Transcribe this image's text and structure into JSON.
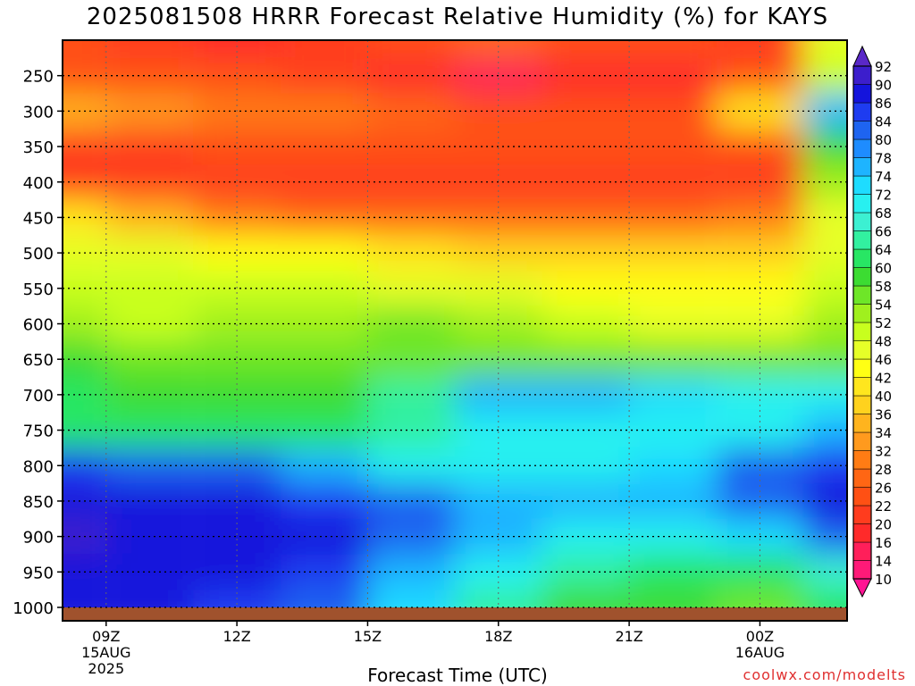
{
  "title": "2025081508 HRRR Forecast Relative Humidity (%) for KAYS",
  "credit": "coolwx.com/modelts",
  "chart_data": {
    "type": "heatmap",
    "title": "2025081508 HRRR Forecast Relative Humidity (%) for KAYS",
    "xlabel": "Forecast Time (UTC)",
    "ylabel": "",
    "x_hours": [
      8,
      10,
      12,
      14,
      16,
      18,
      20,
      22,
      24,
      26
    ],
    "x_range": [
      8,
      26
    ],
    "x_ticks": [
      {
        "hour": 9,
        "lines": [
          "09Z",
          "15AUG",
          "2025"
        ]
      },
      {
        "hour": 12,
        "lines": [
          "12Z"
        ]
      },
      {
        "hour": 15,
        "lines": [
          "15Z"
        ]
      },
      {
        "hour": 18,
        "lines": [
          "18Z"
        ]
      },
      {
        "hour": 21,
        "lines": [
          "21Z"
        ]
      },
      {
        "hour": 24,
        "lines": [
          "00Z",
          "16AUG"
        ]
      }
    ],
    "pressure_levels": [
      200,
      250,
      300,
      350,
      400,
      450,
      500,
      550,
      600,
      650,
      700,
      750,
      800,
      850,
      900,
      950,
      1000
    ],
    "y_ticks": [
      250,
      300,
      350,
      400,
      450,
      500,
      550,
      600,
      650,
      700,
      750,
      800,
      850,
      900,
      950,
      1000
    ],
    "y_range": [
      200,
      1000
    ],
    "rh_values": [
      [
        22,
        20,
        18,
        20,
        24,
        26,
        24,
        22,
        20,
        46
      ],
      [
        24,
        22,
        24,
        20,
        16,
        14,
        16,
        18,
        22,
        48
      ],
      [
        34,
        32,
        30,
        28,
        26,
        24,
        22,
        24,
        40,
        74
      ],
      [
        20,
        20,
        22,
        22,
        22,
        22,
        22,
        22,
        22,
        58
      ],
      [
        20,
        20,
        20,
        20,
        20,
        20,
        20,
        20,
        20,
        52
      ],
      [
        40,
        34,
        28,
        26,
        26,
        26,
        26,
        26,
        30,
        46
      ],
      [
        46,
        46,
        44,
        42,
        40,
        38,
        36,
        36,
        38,
        46
      ],
      [
        48,
        48,
        48,
        48,
        46,
        46,
        44,
        44,
        44,
        48
      ],
      [
        52,
        50,
        52,
        52,
        54,
        52,
        48,
        46,
        46,
        52
      ],
      [
        58,
        56,
        56,
        56,
        54,
        54,
        56,
        56,
        54,
        56
      ],
      [
        60,
        58,
        58,
        58,
        64,
        74,
        76,
        72,
        70,
        68
      ],
      [
        62,
        62,
        60,
        60,
        64,
        68,
        70,
        68,
        70,
        74
      ],
      [
        84,
        82,
        82,
        76,
        70,
        70,
        70,
        72,
        80,
        84
      ],
      [
        86,
        86,
        86,
        84,
        80,
        74,
        74,
        76,
        80,
        86
      ],
      [
        90,
        88,
        88,
        86,
        82,
        74,
        68,
        68,
        72,
        80
      ],
      [
        88,
        88,
        88,
        84,
        76,
        68,
        64,
        62,
        60,
        66
      ],
      [
        86,
        86,
        84,
        80,
        72,
        64,
        58,
        58,
        56,
        60
      ]
    ],
    "color_bar": {
      "levels": [
        10,
        14,
        16,
        20,
        22,
        26,
        28,
        32,
        34,
        36,
        40,
        42,
        46,
        48,
        52,
        54,
        58,
        60,
        64,
        66,
        68,
        72,
        74,
        78,
        80,
        84,
        86,
        90,
        92
      ],
      "colors": [
        "#ff1493",
        "#ff1a78",
        "#ff1f5a",
        "#ff2a2a",
        "#ff3c1e",
        "#ff5014",
        "#ff6614",
        "#ff7c14",
        "#ff9a1e",
        "#ffb41e",
        "#ffd21e",
        "#ffe61e",
        "#ffff14",
        "#e6ff28",
        "#c8ff1e",
        "#a0f01e",
        "#6ee628",
        "#3cdc32",
        "#28e664",
        "#32f0a0",
        "#3cf0d2",
        "#28f0f0",
        "#1edcff",
        "#1eb4ff",
        "#1e8cff",
        "#1e64f0",
        "#1e3cf0",
        "#1414dc",
        "#3c1ecc",
        "#5a28c8"
      ]
    },
    "surface_color": "#a0522d",
    "grid": "dotted"
  }
}
